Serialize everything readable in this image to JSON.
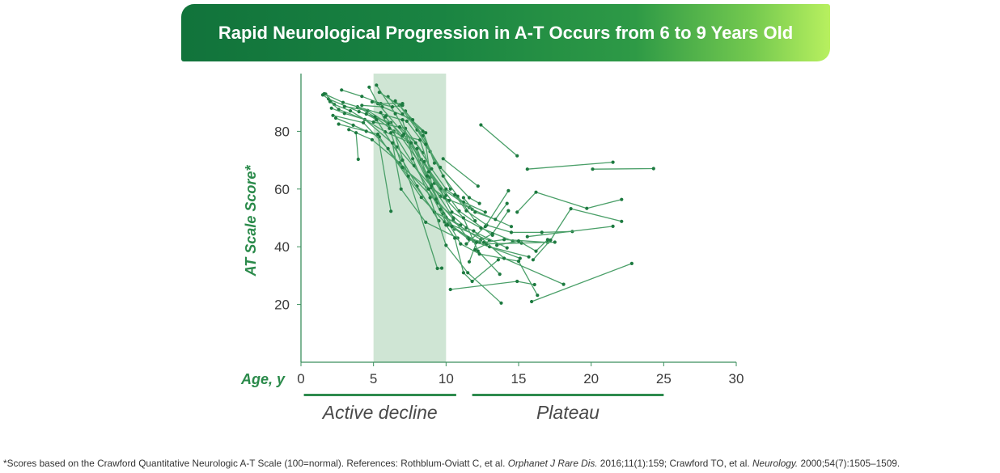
{
  "chart_data": {
    "type": "line",
    "title": "Rapid Neurological Progression in A-T Occurs from 6 to 9 Years Old",
    "xlabel": "Age, y",
    "ylabel": "AT Scale Score*",
    "xlim": [
      0,
      30
    ],
    "ylim": [
      0,
      100
    ],
    "xticks": [
      0,
      5,
      10,
      15,
      20,
      25,
      30
    ],
    "yticks": [
      20,
      40,
      60,
      80
    ],
    "shaded_region": {
      "x_start": 5,
      "x_end": 10
    },
    "phases": [
      {
        "label": "Active decline",
        "x_range": [
          0.2,
          10.7
        ]
      },
      {
        "label": "Plateau",
        "x_range": [
          11.8,
          25.0
        ]
      }
    ],
    "series": [
      {
        "points": [
          [
            1.5,
            92.6
          ],
          [
            1.9,
            91.2
          ],
          [
            4.0,
            86.8
          ],
          [
            6.2,
            83.0
          ],
          [
            8.9,
            64.0
          ]
        ]
      },
      {
        "points": [
          [
            1.7,
            92.9
          ],
          [
            2.3,
            89.3
          ],
          [
            3.4,
            87.1
          ],
          [
            5.8,
            79.8
          ],
          [
            7.4,
            76.4
          ],
          [
            10.0,
            57.8
          ]
        ]
      },
      {
        "points": [
          [
            2.0,
            90.3
          ],
          [
            2.6,
            87.6
          ],
          [
            4.4,
            84.1
          ],
          [
            6.6,
            74.6
          ],
          [
            9.6,
            57.4
          ],
          [
            11.6,
            53.6
          ]
        ]
      },
      {
        "points": [
          [
            2.1,
            88.0
          ],
          [
            3.0,
            86.2
          ],
          [
            5.0,
            83.2
          ],
          [
            7.2,
            81.0
          ],
          [
            8.4,
            72.6
          ]
        ]
      },
      {
        "points": [
          [
            2.4,
            84.6
          ],
          [
            3.6,
            82.1
          ],
          [
            5.4,
            78.1
          ],
          [
            8.3,
            57.1
          ],
          [
            9.9,
            48.6
          ],
          [
            13.0,
            42.1
          ]
        ]
      },
      {
        "points": [
          [
            2.8,
            94.3
          ],
          [
            4.2,
            92.1
          ],
          [
            5.5,
            89.6
          ],
          [
            7.0,
            89.6
          ]
        ]
      },
      {
        "points": [
          [
            3.0,
            88.6
          ],
          [
            4.6,
            87.2
          ],
          [
            6.0,
            82.6
          ],
          [
            7.8,
            68.1
          ],
          [
            10.6,
            46.1
          ]
        ]
      },
      {
        "points": [
          [
            3.3,
            80.6
          ],
          [
            4.9,
            77.1
          ],
          [
            6.8,
            69.1
          ],
          [
            9.4,
            55.2
          ],
          [
            11.4,
            46.6
          ],
          [
            14.2,
            39.6
          ]
        ]
      },
      {
        "points": [
          [
            3.8,
            79.5
          ],
          [
            3.95,
            70.3
          ]
        ]
      },
      {
        "points": [
          [
            2.6,
            82.5
          ],
          [
            4.5,
            80.0
          ],
          [
            5.3,
            79.0
          ],
          [
            6.2,
            52.3
          ]
        ]
      },
      {
        "points": [
          [
            3.9,
            88.5
          ],
          [
            5.1,
            85.0
          ],
          [
            6.4,
            80.0
          ],
          [
            9.4,
            32.5
          ],
          [
            9.7,
            32.6
          ]
        ]
      },
      {
        "points": [
          [
            4.2,
            89.0
          ],
          [
            5.6,
            88.5
          ],
          [
            7.5,
            84.5
          ],
          [
            8.6,
            79.5
          ]
        ]
      },
      {
        "points": [
          [
            4.5,
            86.0
          ],
          [
            5.2,
            84.0
          ],
          [
            7.0,
            70.0
          ],
          [
            8.0,
            61.0
          ],
          [
            9.5,
            49.0
          ]
        ]
      },
      {
        "points": [
          [
            1.6,
            93.0
          ],
          [
            2.9,
            90.0
          ],
          [
            5.9,
            85.5
          ],
          [
            7.3,
            83.5
          ],
          [
            8.9,
            73.0
          ],
          [
            10.3,
            60.0
          ]
        ]
      },
      {
        "points": [
          [
            2.2,
            85.5
          ],
          [
            4.3,
            83.0
          ],
          [
            6.0,
            74.0
          ],
          [
            7.4,
            64.5
          ],
          [
            9.2,
            52.0
          ],
          [
            11.0,
            47.5
          ]
        ]
      },
      {
        "points": [
          [
            4.7,
            95.3
          ],
          [
            5.3,
            89.6
          ],
          [
            7.1,
            79.1
          ],
          [
            10.0,
            50.2
          ],
          [
            12.4,
            42.5
          ]
        ]
      },
      {
        "points": [
          [
            5.2,
            96.0
          ],
          [
            6.5,
            86.1
          ],
          [
            8.3,
            70.2
          ],
          [
            10.9,
            52.4
          ],
          [
            13.2,
            44.0
          ]
        ]
      },
      {
        "points": [
          [
            4.9,
            90.2
          ],
          [
            6.3,
            88.5
          ],
          [
            7.0,
            89.0
          ]
        ]
      },
      {
        "points": [
          [
            5.5,
            86.5
          ],
          [
            6.1,
            81.0
          ],
          [
            7.6,
            76.0
          ],
          [
            9.0,
            60.5
          ],
          [
            10.2,
            56.0
          ]
        ]
      },
      {
        "points": [
          [
            5.8,
            85.0
          ],
          [
            7.0,
            78.5
          ],
          [
            8.2,
            77.0
          ],
          [
            9.2,
            62.0
          ],
          [
            11.8,
            53.0
          ],
          [
            14.5,
            47.0
          ]
        ]
      },
      {
        "points": [
          [
            6.0,
            92.0
          ],
          [
            7.0,
            86.0
          ],
          [
            8.4,
            80.0
          ],
          [
            9.2,
            69.0
          ]
        ]
      },
      {
        "points": [
          [
            6.2,
            79.5
          ],
          [
            7.0,
            67.5
          ],
          [
            8.8,
            60.0
          ],
          [
            10.1,
            47.5
          ],
          [
            12.3,
            41.5
          ]
        ]
      },
      {
        "points": [
          [
            6.3,
            76.0
          ],
          [
            6.9,
            60.0
          ],
          [
            8.6,
            48.5
          ],
          [
            10.8,
            43.0
          ]
        ]
      },
      {
        "points": [
          [
            6.8,
            81.5
          ],
          [
            7.9,
            76.0
          ],
          [
            9.0,
            67.0
          ],
          [
            10.0,
            60.0
          ],
          [
            11.2,
            55.5
          ],
          [
            12.7,
            52.0
          ]
        ]
      },
      {
        "points": [
          [
            7.0,
            84.0
          ],
          [
            7.7,
            70.5
          ],
          [
            8.9,
            57.0
          ],
          [
            10.0,
            40.5
          ],
          [
            11.5,
            31.0
          ],
          [
            13.8,
            20.5
          ]
        ]
      },
      {
        "points": [
          [
            7.2,
            87.0
          ],
          [
            8.4,
            78.5
          ],
          [
            9.8,
            64.5
          ],
          [
            10.8,
            57.5
          ],
          [
            12.0,
            49.0
          ]
        ]
      },
      {
        "points": [
          [
            5.4,
            93.5
          ],
          [
            6.8,
            89.0
          ],
          [
            8.0,
            80.5
          ],
          [
            9.6,
            67.5
          ],
          [
            11.6,
            57.0
          ],
          [
            12.3,
            55.0
          ]
        ]
      },
      {
        "points": [
          [
            6.5,
            90.5
          ],
          [
            7.7,
            84.0
          ],
          [
            8.6,
            75.5
          ],
          [
            9.0,
            61.5
          ],
          [
            10.5,
            50.0
          ]
        ]
      },
      {
        "points": [
          [
            8.0,
            74.0
          ],
          [
            8.7,
            64.5
          ],
          [
            10.2,
            48.0
          ],
          [
            11.9,
            42.0
          ],
          [
            15.1,
            36.0
          ]
        ]
      },
      {
        "points": [
          [
            8.5,
            69.5
          ],
          [
            9.6,
            60.0
          ],
          [
            10.4,
            52.0
          ],
          [
            12.4,
            46.5
          ],
          [
            14.6,
            42.0
          ]
        ]
      },
      {
        "points": [
          [
            8.8,
            66.0
          ],
          [
            9.9,
            57.0
          ],
          [
            11.2,
            50.0
          ],
          [
            12.2,
            38.5
          ],
          [
            13.7,
            30.5
          ]
        ]
      },
      {
        "points": [
          [
            9.0,
            61.0
          ],
          [
            9.8,
            51.5
          ],
          [
            11.0,
            41.0
          ],
          [
            12.3,
            37.5
          ],
          [
            15.0,
            35.0
          ],
          [
            16.3,
            23.2
          ]
        ]
      },
      {
        "points": [
          [
            9.3,
            56.5
          ],
          [
            10.5,
            49.5
          ],
          [
            11.5,
            43.0
          ],
          [
            12.6,
            41.5
          ],
          [
            14.0,
            42.5
          ],
          [
            17.0,
            41.5
          ]
        ]
      },
      {
        "points": [
          [
            9.6,
            53.0
          ],
          [
            10.4,
            47.0
          ],
          [
            11.6,
            42.5
          ],
          [
            13.0,
            40.0
          ],
          [
            15.7,
            36.5
          ]
        ]
      },
      {
        "points": [
          [
            10.0,
            47.5
          ],
          [
            10.6,
            43.0
          ],
          [
            11.2,
            31.0
          ],
          [
            11.8,
            28.0
          ],
          [
            13.6,
            35.5
          ]
        ]
      },
      {
        "points": [
          [
            10.3,
            25.2
          ],
          [
            14.9,
            28.0
          ],
          [
            16.1,
            26.9
          ]
        ]
      },
      {
        "points": [
          [
            9.8,
            70.5
          ],
          [
            12.2,
            61.0
          ]
        ]
      },
      {
        "points": [
          [
            10.6,
            58.0
          ],
          [
            11.4,
            52.5
          ],
          [
            12.8,
            47.5
          ],
          [
            14.5,
            45.0
          ],
          [
            16.6,
            45.0
          ],
          [
            18.7,
            45.3
          ]
        ]
      },
      {
        "points": [
          [
            11.2,
            57.0
          ],
          [
            12.0,
            52.0
          ],
          [
            13.4,
            49.5
          ],
          [
            14.2,
            55.0
          ]
        ]
      },
      {
        "points": [
          [
            11.4,
            41.0
          ],
          [
            12.7,
            47.0
          ],
          [
            14.3,
            59.4
          ]
        ]
      },
      {
        "points": [
          [
            11.6,
            34.8
          ],
          [
            12.1,
            41.5
          ],
          [
            13.2,
            44.5
          ],
          [
            14.3,
            52.5
          ]
        ]
      },
      {
        "points": [
          [
            12.0,
            39.0
          ],
          [
            12.8,
            41.0
          ],
          [
            15.2,
            41.3
          ],
          [
            17.5,
            41.6
          ]
        ]
      },
      {
        "points": [
          [
            11.9,
            45.5
          ],
          [
            14.0,
            36.0
          ],
          [
            18.1,
            27.0
          ]
        ]
      },
      {
        "points": [
          [
            12.4,
            82.2
          ],
          [
            14.9,
            71.5
          ]
        ]
      },
      {
        "points": [
          [
            15.6,
            66.9
          ],
          [
            21.5,
            69.3
          ]
        ]
      },
      {
        "points": [
          [
            20.1,
            66.9
          ],
          [
            24.3,
            67.1
          ]
        ]
      },
      {
        "points": [
          [
            14.9,
            52.0
          ],
          [
            16.2,
            58.9
          ],
          [
            19.7,
            53.3
          ],
          [
            22.1,
            56.4
          ]
        ]
      },
      {
        "points": [
          [
            15.6,
            43.5
          ],
          [
            21.5,
            47.1
          ]
        ]
      },
      {
        "points": [
          [
            16.0,
            35.5
          ],
          [
            17.2,
            42.3
          ],
          [
            18.6,
            53.2
          ],
          [
            22.1,
            48.8
          ]
        ]
      },
      {
        "points": [
          [
            15.9,
            21.0
          ],
          [
            22.8,
            34.2
          ]
        ]
      },
      {
        "points": [
          [
            13.5,
            40.5
          ],
          [
            15.0,
            42.0
          ],
          [
            16.2,
            38.5
          ],
          [
            17.0,
            42.5
          ]
        ]
      }
    ]
  },
  "footnote": {
    "text_1": "*Scores based on the Crawford Quantitative Neurologic A-T Scale (100=normal). References: Rothblum-Oviatt C, et al. ",
    "journal_1": "Orphanet J Rare Dis.",
    "text_2": " 2016;11(1):159; Crawford TO, et al. ",
    "journal_2": "Neurology.",
    "text_3": " 2000;54(7):1505–1509."
  },
  "colors": {
    "line": "#4a9f68",
    "marker": "#1d7a40",
    "shade": "#cfe5d4",
    "axis": "#3b8f5d",
    "phase_bar": "#2e8b4e"
  }
}
